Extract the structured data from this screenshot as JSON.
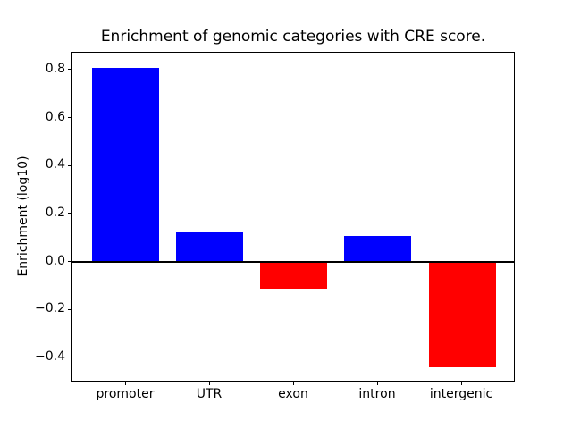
{
  "chart_data": {
    "type": "bar",
    "title": "Enrichment of genomic categories with CRE score.",
    "ylabel": "Enrichment (log10)",
    "xlabel": "",
    "categories": [
      "promoter",
      "UTR",
      "exon",
      "intron",
      "intergenic"
    ],
    "values": [
      0.81,
      0.125,
      -0.11,
      0.11,
      -0.44
    ],
    "positive_color": "#0000ff",
    "negative_color": "#ff0000",
    "axis_color": "#000000",
    "background_color": "#ffffff",
    "ylim": [
      -0.5025,
      0.8725
    ],
    "xlim": [
      -0.634,
      4.634
    ],
    "bar_width": 0.8,
    "yticks": {
      "values": [
        0.8,
        0.6,
        0.4,
        0.2,
        0.0,
        -0.2,
        -0.4
      ],
      "labels": [
        "0.8",
        "0.6",
        "0.4",
        "0.2",
        "0.0",
        "−0.2",
        "−0.4"
      ]
    },
    "zero_line": true,
    "grid": false,
    "legend": "none"
  }
}
